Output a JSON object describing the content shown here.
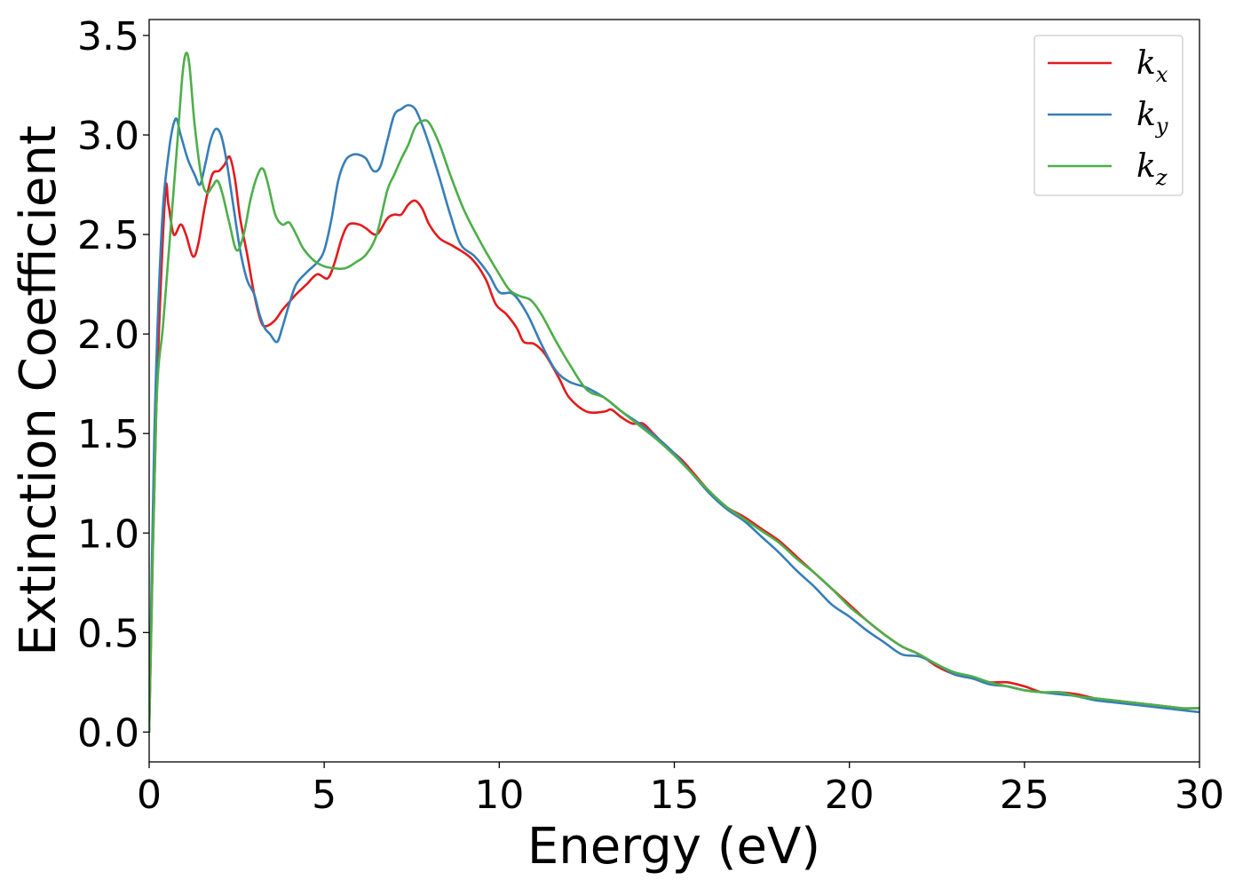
{
  "chart_data": {
    "type": "line",
    "title": "",
    "xlabel": "Energy (eV)",
    "ylabel": "Extinction Coefficient",
    "xlim": [
      0,
      30
    ],
    "ylim": [
      -0.15,
      3.58
    ],
    "xticks": [
      0,
      5,
      10,
      15,
      20,
      25,
      30
    ],
    "xtick_labels": [
      "0",
      "5",
      "10",
      "15",
      "20",
      "25",
      "30"
    ],
    "yticks": [
      0,
      0.5,
      1.0,
      1.5,
      2.0,
      2.5,
      3.0,
      3.5
    ],
    "ytick_labels": [
      "0.0",
      "0.5",
      "1.0",
      "1.5",
      "2.0",
      "2.5",
      "3.0",
      "3.5"
    ],
    "grid": false,
    "legend_position": "top-right",
    "series": [
      {
        "name": "kx",
        "legend_base": "k",
        "legend_sub": "x",
        "color": "#e41a1c",
        "points": [
          [
            0,
            0
          ],
          [
            0.2,
            1.6
          ],
          [
            0.45,
            2.68
          ],
          [
            0.55,
            2.65
          ],
          [
            0.7,
            2.5
          ],
          [
            0.9,
            2.55
          ],
          [
            1.05,
            2.5
          ],
          [
            1.25,
            2.39
          ],
          [
            1.4,
            2.45
          ],
          [
            1.6,
            2.65
          ],
          [
            1.8,
            2.8
          ],
          [
            2.0,
            2.82
          ],
          [
            2.15,
            2.85
          ],
          [
            2.3,
            2.89
          ],
          [
            2.45,
            2.78
          ],
          [
            2.6,
            2.58
          ],
          [
            2.8,
            2.4
          ],
          [
            3.0,
            2.2
          ],
          [
            3.2,
            2.06
          ],
          [
            3.35,
            2.04
          ],
          [
            3.6,
            2.07
          ],
          [
            3.8,
            2.12
          ],
          [
            4.0,
            2.16
          ],
          [
            4.2,
            2.2
          ],
          [
            4.5,
            2.25
          ],
          [
            4.8,
            2.3
          ],
          [
            5.1,
            2.28
          ],
          [
            5.3,
            2.36
          ],
          [
            5.5,
            2.48
          ],
          [
            5.7,
            2.55
          ],
          [
            6.0,
            2.55
          ],
          [
            6.2,
            2.53
          ],
          [
            6.5,
            2.5
          ],
          [
            6.8,
            2.58
          ],
          [
            7.0,
            2.6
          ],
          [
            7.2,
            2.6
          ],
          [
            7.4,
            2.65
          ],
          [
            7.6,
            2.67
          ],
          [
            7.8,
            2.63
          ],
          [
            8.0,
            2.55
          ],
          [
            8.3,
            2.48
          ],
          [
            8.7,
            2.44
          ],
          [
            9.2,
            2.38
          ],
          [
            9.6,
            2.28
          ],
          [
            9.9,
            2.15
          ],
          [
            10.2,
            2.1
          ],
          [
            10.5,
            2.03
          ],
          [
            10.7,
            1.96
          ],
          [
            11.0,
            1.95
          ],
          [
            11.3,
            1.9
          ],
          [
            11.7,
            1.78
          ],
          [
            12.0,
            1.68
          ],
          [
            12.5,
            1.61
          ],
          [
            13.0,
            1.61
          ],
          [
            13.2,
            1.62
          ],
          [
            13.5,
            1.58
          ],
          [
            13.8,
            1.55
          ],
          [
            14.1,
            1.55
          ],
          [
            14.4,
            1.5
          ],
          [
            14.8,
            1.43
          ],
          [
            15.2,
            1.37
          ],
          [
            15.6,
            1.29
          ],
          [
            16.0,
            1.21
          ],
          [
            16.5,
            1.13
          ],
          [
            17.0,
            1.08
          ],
          [
            17.5,
            1.02
          ],
          [
            18.0,
            0.96
          ],
          [
            18.5,
            0.88
          ],
          [
            19.0,
            0.8
          ],
          [
            19.5,
            0.72
          ],
          [
            20.0,
            0.64
          ],
          [
            20.5,
            0.56
          ],
          [
            21.0,
            0.49
          ],
          [
            21.5,
            0.43
          ],
          [
            22.0,
            0.39
          ],
          [
            22.5,
            0.33
          ],
          [
            23.0,
            0.29
          ],
          [
            23.5,
            0.27
          ],
          [
            24.0,
            0.25
          ],
          [
            24.5,
            0.25
          ],
          [
            25.0,
            0.23
          ],
          [
            25.5,
            0.2
          ],
          [
            26.0,
            0.2
          ],
          [
            26.5,
            0.19
          ],
          [
            27.0,
            0.17
          ],
          [
            27.5,
            0.16
          ],
          [
            28.0,
            0.15
          ],
          [
            28.5,
            0.14
          ],
          [
            29.0,
            0.13
          ],
          [
            29.5,
            0.12
          ],
          [
            30.0,
            0.12
          ]
        ]
      },
      {
        "name": "ky",
        "legend_base": "k",
        "legend_sub": "y",
        "color": "#377eb8",
        "points": [
          [
            0,
            0
          ],
          [
            0.15,
            1.5
          ],
          [
            0.35,
            2.5
          ],
          [
            0.55,
            2.9
          ],
          [
            0.75,
            3.08
          ],
          [
            0.9,
            3.0
          ],
          [
            1.1,
            2.88
          ],
          [
            1.3,
            2.8
          ],
          [
            1.45,
            2.75
          ],
          [
            1.6,
            2.85
          ],
          [
            1.75,
            2.97
          ],
          [
            1.9,
            3.03
          ],
          [
            2.05,
            3.0
          ],
          [
            2.2,
            2.88
          ],
          [
            2.4,
            2.65
          ],
          [
            2.6,
            2.42
          ],
          [
            2.8,
            2.27
          ],
          [
            3.0,
            2.2
          ],
          [
            3.15,
            2.1
          ],
          [
            3.3,
            2.03
          ],
          [
            3.45,
            2.0
          ],
          [
            3.65,
            1.96
          ],
          [
            3.8,
            2.03
          ],
          [
            4.0,
            2.15
          ],
          [
            4.2,
            2.25
          ],
          [
            4.5,
            2.31
          ],
          [
            4.8,
            2.36
          ],
          [
            5.0,
            2.42
          ],
          [
            5.2,
            2.57
          ],
          [
            5.4,
            2.77
          ],
          [
            5.6,
            2.87
          ],
          [
            5.8,
            2.9
          ],
          [
            6.0,
            2.9
          ],
          [
            6.2,
            2.88
          ],
          [
            6.4,
            2.82
          ],
          [
            6.6,
            2.84
          ],
          [
            6.8,
            2.97
          ],
          [
            7.0,
            3.1
          ],
          [
            7.2,
            3.13
          ],
          [
            7.4,
            3.15
          ],
          [
            7.6,
            3.13
          ],
          [
            7.8,
            3.05
          ],
          [
            8.0,
            2.95
          ],
          [
            8.3,
            2.78
          ],
          [
            8.6,
            2.6
          ],
          [
            8.9,
            2.45
          ],
          [
            9.3,
            2.39
          ],
          [
            9.7,
            2.3
          ],
          [
            10.0,
            2.21
          ],
          [
            10.4,
            2.2
          ],
          [
            10.8,
            2.1
          ],
          [
            11.2,
            1.95
          ],
          [
            11.6,
            1.82
          ],
          [
            12.0,
            1.76
          ],
          [
            12.5,
            1.73
          ],
          [
            13.0,
            1.68
          ],
          [
            13.5,
            1.61
          ],
          [
            14.0,
            1.55
          ],
          [
            14.5,
            1.48
          ],
          [
            15.0,
            1.4
          ],
          [
            15.5,
            1.3
          ],
          [
            16.0,
            1.2
          ],
          [
            16.5,
            1.12
          ],
          [
            17.0,
            1.06
          ],
          [
            17.5,
            0.98
          ],
          [
            18.0,
            0.9
          ],
          [
            18.5,
            0.81
          ],
          [
            19.0,
            0.73
          ],
          [
            19.5,
            0.64
          ],
          [
            20.0,
            0.58
          ],
          [
            20.5,
            0.51
          ],
          [
            21.0,
            0.45
          ],
          [
            21.5,
            0.39
          ],
          [
            22.0,
            0.38
          ],
          [
            22.5,
            0.34
          ],
          [
            23.0,
            0.29
          ],
          [
            23.5,
            0.27
          ],
          [
            24.0,
            0.24
          ],
          [
            24.5,
            0.23
          ],
          [
            25.0,
            0.21
          ],
          [
            25.5,
            0.2
          ],
          [
            26.0,
            0.19
          ],
          [
            26.5,
            0.18
          ],
          [
            27.0,
            0.16
          ],
          [
            27.5,
            0.15
          ],
          [
            28.0,
            0.14
          ],
          [
            28.5,
            0.13
          ],
          [
            29.0,
            0.12
          ],
          [
            29.5,
            0.11
          ],
          [
            30.0,
            0.1
          ]
        ]
      },
      {
        "name": "kz",
        "legend_base": "k",
        "legend_sub": "z",
        "color": "#4daf4a",
        "points": [
          [
            0,
            0
          ],
          [
            0.2,
            1.6
          ],
          [
            0.4,
            2.05
          ],
          [
            0.6,
            2.5
          ],
          [
            0.8,
            2.95
          ],
          [
            0.95,
            3.3
          ],
          [
            1.05,
            3.41
          ],
          [
            1.15,
            3.35
          ],
          [
            1.3,
            3.05
          ],
          [
            1.5,
            2.78
          ],
          [
            1.65,
            2.71
          ],
          [
            1.8,
            2.74
          ],
          [
            1.95,
            2.77
          ],
          [
            2.1,
            2.7
          ],
          [
            2.3,
            2.55
          ],
          [
            2.5,
            2.42
          ],
          [
            2.7,
            2.5
          ],
          [
            2.9,
            2.68
          ],
          [
            3.1,
            2.8
          ],
          [
            3.25,
            2.83
          ],
          [
            3.4,
            2.75
          ],
          [
            3.6,
            2.6
          ],
          [
            3.8,
            2.55
          ],
          [
            4.0,
            2.56
          ],
          [
            4.2,
            2.5
          ],
          [
            4.4,
            2.43
          ],
          [
            4.7,
            2.37
          ],
          [
            5.0,
            2.34
          ],
          [
            5.3,
            2.33
          ],
          [
            5.6,
            2.33
          ],
          [
            5.9,
            2.36
          ],
          [
            6.2,
            2.4
          ],
          [
            6.5,
            2.5
          ],
          [
            6.8,
            2.72
          ],
          [
            7.0,
            2.8
          ],
          [
            7.2,
            2.88
          ],
          [
            7.4,
            2.95
          ],
          [
            7.6,
            3.04
          ],
          [
            7.8,
            3.07
          ],
          [
            8.0,
            3.06
          ],
          [
            8.3,
            2.95
          ],
          [
            8.6,
            2.8
          ],
          [
            9.0,
            2.62
          ],
          [
            9.5,
            2.45
          ],
          [
            10.0,
            2.3
          ],
          [
            10.3,
            2.22
          ],
          [
            10.6,
            2.19
          ],
          [
            10.9,
            2.17
          ],
          [
            11.2,
            2.1
          ],
          [
            11.6,
            1.97
          ],
          [
            12.0,
            1.85
          ],
          [
            12.5,
            1.72
          ],
          [
            13.0,
            1.68
          ],
          [
            13.5,
            1.61
          ],
          [
            14.0,
            1.54
          ],
          [
            14.5,
            1.47
          ],
          [
            15.0,
            1.39
          ],
          [
            15.5,
            1.3
          ],
          [
            16.0,
            1.21
          ],
          [
            16.5,
            1.13
          ],
          [
            17.0,
            1.07
          ],
          [
            17.5,
            1.01
          ],
          [
            18.0,
            0.95
          ],
          [
            18.5,
            0.87
          ],
          [
            19.0,
            0.8
          ],
          [
            19.5,
            0.72
          ],
          [
            20.0,
            0.63
          ],
          [
            20.5,
            0.56
          ],
          [
            21.0,
            0.49
          ],
          [
            21.5,
            0.43
          ],
          [
            22.0,
            0.39
          ],
          [
            22.5,
            0.34
          ],
          [
            23.0,
            0.3
          ],
          [
            23.5,
            0.28
          ],
          [
            24.0,
            0.25
          ],
          [
            24.5,
            0.23
          ],
          [
            25.0,
            0.21
          ],
          [
            25.5,
            0.2
          ],
          [
            26.0,
            0.2
          ],
          [
            26.5,
            0.18
          ],
          [
            27.0,
            0.17
          ],
          [
            27.5,
            0.16
          ],
          [
            28.0,
            0.15
          ],
          [
            28.5,
            0.14
          ],
          [
            29.0,
            0.13
          ],
          [
            29.5,
            0.12
          ],
          [
            30.0,
            0.12
          ]
        ]
      }
    ]
  }
}
